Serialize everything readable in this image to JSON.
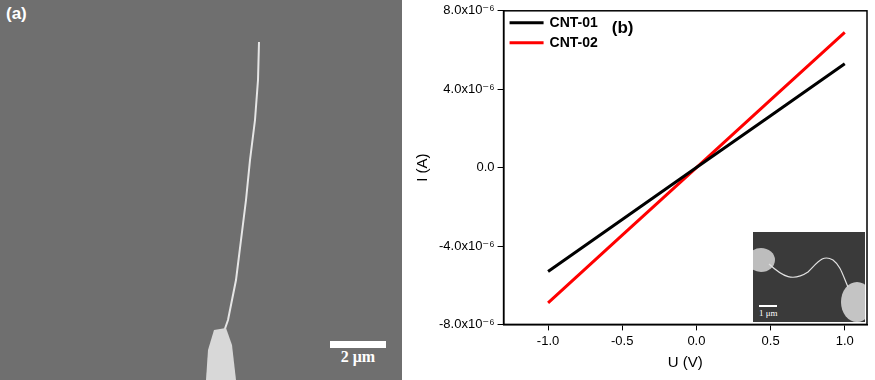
{
  "image_a": {
    "panel_label": "(a)",
    "scale_bar": "2 μm"
  },
  "chart_data": {
    "type": "line",
    "panel_label": "(b)",
    "x_label": "U (V)",
    "y_label": "I (A)",
    "series": [
      {
        "name": "CNT-01",
        "color": "#000000",
        "x": [
          -1,
          -0.5,
          0,
          0.5,
          1
        ],
        "values": [
          -5.3e-06,
          -2.65e-06,
          0,
          2.65e-06,
          5.3e-06
        ]
      },
      {
        "name": "CNT-02",
        "color": "#ff0000",
        "x": [
          -1,
          -0.5,
          0,
          0.5,
          1
        ],
        "values": [
          -6.9e-06,
          -3.45e-06,
          0,
          3.45e-06,
          6.9e-06
        ]
      }
    ],
    "xlim": [
      -1.3,
      1.15
    ],
    "xticks": [
      {
        "value": -1,
        "label": "-1.0"
      },
      {
        "value": -0.5,
        "label": "-0.5"
      },
      {
        "value": 0,
        "label": "0.0"
      },
      {
        "value": 0.5,
        "label": "0.5"
      },
      {
        "value": 1,
        "label": "1.0"
      }
    ],
    "ylim": [
      -8e-06,
      8e-06
    ],
    "yticks": [
      {
        "value": -8e-06,
        "label": "-8.0x10⁻⁶"
      },
      {
        "value": -4e-06,
        "label": "-4.0x10⁻⁶"
      },
      {
        "value": 0,
        "label": "0.0"
      },
      {
        "value": 4e-06,
        "label": "4.0x10⁻⁶"
      },
      {
        "value": 8e-06,
        "label": "8.0x10⁻⁶"
      }
    ],
    "grid": false,
    "legend": "upper left",
    "inset_scale_bar": "1 μm"
  }
}
